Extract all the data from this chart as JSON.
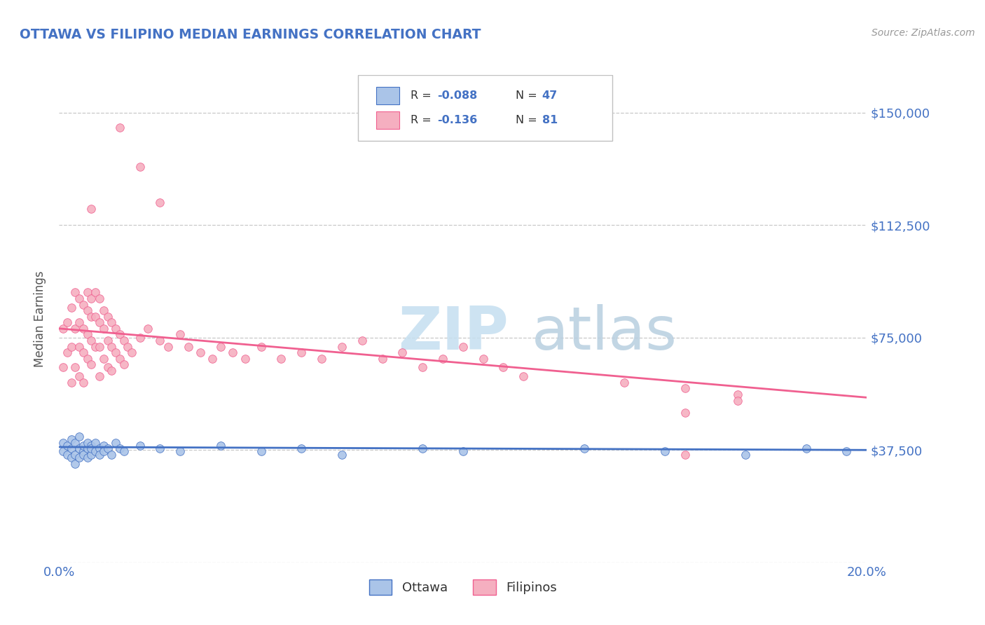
{
  "title": "OTTAWA VS FILIPINO MEDIAN EARNINGS CORRELATION CHART",
  "source": "Source: ZipAtlas.com",
  "ylabel": "Median Earnings",
  "xlim": [
    0.0,
    0.2
  ],
  "ylim": [
    0,
    162500
  ],
  "yticks": [
    0,
    37500,
    75000,
    112500,
    150000
  ],
  "ytick_labels": [
    "",
    "$37,500",
    "$75,000",
    "$112,500",
    "$150,000"
  ],
  "xtick_labels": [
    "0.0%",
    "20.0%"
  ],
  "background_color": "#ffffff",
  "grid_color": "#c8c8c8",
  "title_color": "#4472c4",
  "axis_color": "#4472c4",
  "watermark_color": "#d8e8f0",
  "ottawa_fill": "#aac4e8",
  "ottawa_edge": "#4472c4",
  "filipinos_fill": "#f5afc0",
  "filipinos_edge": "#f06090",
  "ottawa_trend_color": "#4472c4",
  "filipinos_trend_color": "#f06090",
  "legend_box_edge": "#c0c0c0",
  "ottawa_x": [
    0.001,
    0.001,
    0.002,
    0.002,
    0.003,
    0.003,
    0.003,
    0.004,
    0.004,
    0.004,
    0.005,
    0.005,
    0.005,
    0.006,
    0.006,
    0.006,
    0.007,
    0.007,
    0.007,
    0.008,
    0.008,
    0.008,
    0.009,
    0.009,
    0.01,
    0.01,
    0.011,
    0.011,
    0.012,
    0.013,
    0.014,
    0.015,
    0.016,
    0.02,
    0.025,
    0.03,
    0.04,
    0.05,
    0.06,
    0.07,
    0.09,
    0.1,
    0.13,
    0.15,
    0.17,
    0.185,
    0.195
  ],
  "ottawa_y": [
    40000,
    37000,
    36000,
    39000,
    35000,
    41000,
    38000,
    36000,
    40000,
    33000,
    38000,
    35000,
    42000,
    37000,
    39000,
    36000,
    38000,
    40000,
    35000,
    39000,
    36000,
    38000,
    37000,
    40000,
    38000,
    36000,
    39000,
    37000,
    38000,
    36000,
    40000,
    38000,
    37000,
    39000,
    38000,
    37000,
    39000,
    37000,
    38000,
    36000,
    38000,
    37000,
    38000,
    37000,
    36000,
    38000,
    37000
  ],
  "filipinos_x": [
    0.001,
    0.001,
    0.002,
    0.002,
    0.003,
    0.003,
    0.003,
    0.004,
    0.004,
    0.004,
    0.005,
    0.005,
    0.005,
    0.005,
    0.006,
    0.006,
    0.006,
    0.006,
    0.007,
    0.007,
    0.007,
    0.007,
    0.008,
    0.008,
    0.008,
    0.008,
    0.009,
    0.009,
    0.009,
    0.01,
    0.01,
    0.01,
    0.01,
    0.011,
    0.011,
    0.011,
    0.012,
    0.012,
    0.012,
    0.013,
    0.013,
    0.013,
    0.014,
    0.014,
    0.015,
    0.015,
    0.016,
    0.016,
    0.017,
    0.018,
    0.02,
    0.022,
    0.025,
    0.027,
    0.03,
    0.032,
    0.035,
    0.038,
    0.04,
    0.043,
    0.046,
    0.05,
    0.055,
    0.06,
    0.065,
    0.07,
    0.075,
    0.08,
    0.085,
    0.09,
    0.095,
    0.1,
    0.105,
    0.11,
    0.115,
    0.14,
    0.155,
    0.168,
    0.155,
    0.168,
    0.155
  ],
  "filipinos_y": [
    78000,
    65000,
    80000,
    70000,
    85000,
    72000,
    60000,
    90000,
    78000,
    65000,
    88000,
    80000,
    72000,
    62000,
    86000,
    78000,
    70000,
    60000,
    90000,
    84000,
    76000,
    68000,
    88000,
    82000,
    74000,
    66000,
    90000,
    82000,
    72000,
    88000,
    80000,
    72000,
    62000,
    84000,
    78000,
    68000,
    82000,
    74000,
    65000,
    80000,
    72000,
    64000,
    78000,
    70000,
    76000,
    68000,
    74000,
    66000,
    72000,
    70000,
    75000,
    78000,
    74000,
    72000,
    76000,
    72000,
    70000,
    68000,
    72000,
    70000,
    68000,
    72000,
    68000,
    70000,
    68000,
    72000,
    74000,
    68000,
    70000,
    65000,
    68000,
    72000,
    68000,
    65000,
    62000,
    60000,
    58000,
    56000,
    50000,
    54000,
    36000
  ]
}
